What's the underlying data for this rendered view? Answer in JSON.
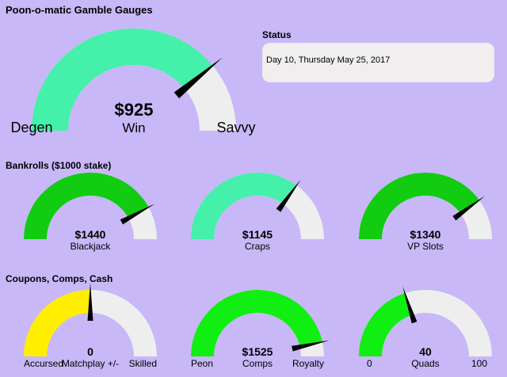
{
  "page_title": "Poon-o-matic Gamble Gauges",
  "status": {
    "title": "Status",
    "text": "Day 10, Thursday May 25, 2017"
  },
  "colors": {
    "background": "#c8b8f8",
    "track": "#eeeeee",
    "teal": "#44f0aa",
    "green_dark": "#11cc11",
    "green_bright": "#11ee11",
    "yellow": "#ffee00"
  },
  "main_gauge": {
    "value_label": "$925",
    "label": "Win",
    "left_label": "Degen",
    "right_label": "Savvy",
    "fill_fraction": 0.78,
    "color": "#44f0aa"
  },
  "bankrolls": {
    "title": "Bankrolls ($1000 stake)",
    "gauges": [
      {
        "value_label": "$1440",
        "label": "Blackjack",
        "fill_fraction": 0.84,
        "color": "#11cc11"
      },
      {
        "value_label": "$1145",
        "label": "Craps",
        "fill_fraction": 0.7,
        "color": "#44f0aa"
      },
      {
        "value_label": "$1340",
        "label": "VP Slots",
        "fill_fraction": 0.8,
        "color": "#11cc11"
      }
    ]
  },
  "coupons": {
    "title": "Coupons, Comps, Cash",
    "gauges": [
      {
        "value_label": "0",
        "label": "Matchplay +/-",
        "left_label": "Accursed",
        "right_label": "Skilled",
        "fill_fraction": 0.5,
        "color": "#ffee00"
      },
      {
        "value_label": "$1525",
        "label": "Comps",
        "left_label": "Peon",
        "right_label": "Royalty",
        "fill_fraction": 0.93,
        "color": "#11ee11"
      },
      {
        "value_label": "40",
        "label": "Quads",
        "left_label": "0",
        "right_label": "100",
        "fill_fraction": 0.4,
        "color": "#11ee11"
      }
    ]
  }
}
